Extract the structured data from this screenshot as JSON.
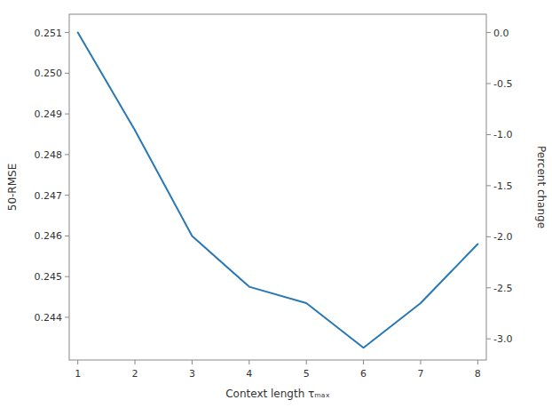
{
  "chart_data": {
    "type": "line",
    "x": [
      1,
      2,
      3,
      4,
      5,
      6,
      7,
      8
    ],
    "values": [
      0.251,
      0.2486,
      0.246,
      0.24475,
      0.24435,
      0.24325,
      0.24435,
      0.2458
    ],
    "color": "#2878b5",
    "xlabel": "Context length τₘₐₓ",
    "ylabel": "50-RMSE",
    "y2label": "Percent change",
    "xlim": [
      0.85,
      8.15
    ],
    "xticks": [
      1,
      2,
      3,
      4,
      5,
      6,
      7,
      8
    ],
    "ylim": [
      0.24295,
      0.25145
    ],
    "yticks": [
      0.244,
      0.245,
      0.246,
      0.247,
      0.248,
      0.249,
      {
        "value": 0.25,
        "label": "0.250"
      },
      0.251
    ],
    "y2lim": [
      -3.20717131474104,
      0.179282868525896
    ],
    "y2ticks": [
      {
        "value": 0.0,
        "label": "0.0"
      },
      -0.5,
      {
        "value": -1.0,
        "label": "-1.0"
      },
      -1.5,
      {
        "value": -2.0,
        "label": "-2.0"
      },
      -2.5,
      {
        "value": -3.0,
        "label": "-3.0"
      }
    ],
    "grid": false
  }
}
